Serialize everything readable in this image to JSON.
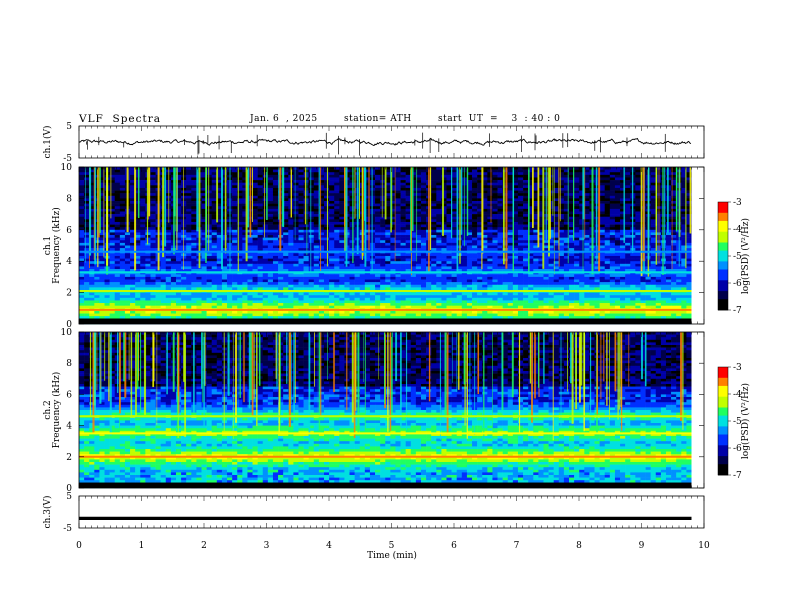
{
  "header": {
    "title": "VLF  Spectra",
    "date": "Jan. 6  , 2025",
    "station": "station= ATH",
    "start": "start  UT  =    3  : 40 : 0"
  },
  "chart_data": [
    {
      "type": "line",
      "name_label": "ch.1(V)",
      "ylabel": "ch.1(V)",
      "ylim": [
        -5,
        5
      ],
      "yticks": [
        5,
        -5
      ],
      "xlim": [
        0,
        10
      ],
      "x_extent_min": 9.8,
      "baseline": 0,
      "noise_amplitude": 0.6,
      "spikes_count": 30
    },
    {
      "type": "heatmap",
      "ylabel_line1": "ch.1",
      "ylabel_line2": "Frequency  (kHz)",
      "ylim": [
        0,
        10
      ],
      "yticks": [
        "0",
        "2",
        "4",
        "6",
        "8",
        "10"
      ],
      "xlim": [
        0,
        9.8
      ],
      "colorbar": {
        "label": "log(PSD) (V²/Hz)",
        "ticks": [
          "-3",
          "-4",
          "-5",
          "-6",
          "-7"
        ],
        "range": [
          -7,
          -3
        ]
      },
      "bands_khz": [
        {
          "center": 0.9,
          "level": -4.0
        },
        {
          "center": 2.1,
          "level": -4.8
        },
        {
          "center": 3.3,
          "level": -5.3
        },
        {
          "center": 4.6,
          "level": -5.6
        }
      ]
    },
    {
      "type": "heatmap",
      "ylabel_line1": "ch.2",
      "ylabel_line2": "Frequency  (kHz)",
      "ylim": [
        0,
        10
      ],
      "yticks": [
        "0",
        "2",
        "4",
        "6",
        "8",
        "10"
      ],
      "xlim": [
        0,
        9.8
      ],
      "colorbar": {
        "label": "log(PSD) (V²/Hz)",
        "ticks": [
          "-3",
          "-4",
          "-5",
          "-6",
          "-7"
        ],
        "range": [
          -7,
          -3
        ]
      },
      "bands_khz": [
        {
          "center": 2.0,
          "level": -4.0
        },
        {
          "center": 3.5,
          "level": -4.3
        },
        {
          "center": 4.6,
          "level": -4.6
        }
      ]
    },
    {
      "type": "line",
      "ylabel": "ch.3(V)",
      "ylim": [
        -5,
        5
      ],
      "yticks": [
        5,
        -5
      ],
      "xlim": [
        0,
        9.8
      ],
      "baseline": -2,
      "xlabel": "Time  (min)",
      "xticks": [
        "0",
        "1",
        "2",
        "3",
        "4",
        "5",
        "6",
        "7",
        "8",
        "9",
        "10"
      ]
    }
  ],
  "colors": {
    "palette": [
      "#000000",
      "#00004a",
      "#0000a8",
      "#0030ff",
      "#0090ff",
      "#00e0e0",
      "#20ff60",
      "#c0ff00",
      "#ffff00",
      "#ff8000",
      "#ff0000",
      "#ffffff"
    ]
  }
}
